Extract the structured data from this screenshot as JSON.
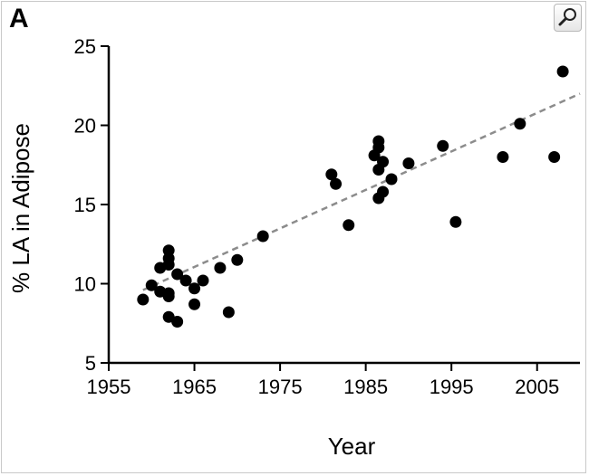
{
  "panel_label": "A",
  "zoom_icon": "magnifier-icon",
  "chart_data": {
    "type": "scatter",
    "title": "",
    "xlabel": "Year",
    "ylabel": "% LA in Adipose",
    "xlim": [
      1955,
      2010
    ],
    "ylim": [
      5,
      25
    ],
    "x_ticks": [
      1955,
      1965,
      1975,
      1985,
      1995,
      2005
    ],
    "y_ticks": [
      5,
      10,
      15,
      20,
      25
    ],
    "grid": false,
    "legend": "none",
    "marker_color": "#000000",
    "trendline": {
      "style": "dashed",
      "color": "#8c8c8c",
      "x": [
        1959,
        2010
      ],
      "y": [
        9.6,
        22.0
      ]
    },
    "points": [
      {
        "x": 1959,
        "y": 9.0
      },
      {
        "x": 1960,
        "y": 9.9
      },
      {
        "x": 1961,
        "y": 11.0
      },
      {
        "x": 1961,
        "y": 9.5
      },
      {
        "x": 1962,
        "y": 12.1
      },
      {
        "x": 1962,
        "y": 11.6
      },
      {
        "x": 1962,
        "y": 11.2
      },
      {
        "x": 1962,
        "y": 9.4
      },
      {
        "x": 1962,
        "y": 9.2
      },
      {
        "x": 1962,
        "y": 7.9
      },
      {
        "x": 1963,
        "y": 10.6
      },
      {
        "x": 1963,
        "y": 7.6
      },
      {
        "x": 1964,
        "y": 10.2
      },
      {
        "x": 1965,
        "y": 9.7
      },
      {
        "x": 1965,
        "y": 8.7
      },
      {
        "x": 1966,
        "y": 10.2
      },
      {
        "x": 1968,
        "y": 11.0
      },
      {
        "x": 1969,
        "y": 8.2
      },
      {
        "x": 1970,
        "y": 11.5
      },
      {
        "x": 1973,
        "y": 13.0
      },
      {
        "x": 1981,
        "y": 16.9
      },
      {
        "x": 1981.5,
        "y": 16.3
      },
      {
        "x": 1983,
        "y": 13.7
      },
      {
        "x": 1986,
        "y": 18.1
      },
      {
        "x": 1986.5,
        "y": 19.0
      },
      {
        "x": 1986.5,
        "y": 18.6
      },
      {
        "x": 1986.5,
        "y": 17.2
      },
      {
        "x": 1986.5,
        "y": 15.4
      },
      {
        "x": 1987,
        "y": 17.7
      },
      {
        "x": 1987,
        "y": 15.8
      },
      {
        "x": 1988,
        "y": 16.6
      },
      {
        "x": 1990,
        "y": 17.6
      },
      {
        "x": 1994,
        "y": 18.7
      },
      {
        "x": 1995.5,
        "y": 13.9
      },
      {
        "x": 2001,
        "y": 18.0
      },
      {
        "x": 2003,
        "y": 20.1
      },
      {
        "x": 2007,
        "y": 18.0
      },
      {
        "x": 2008,
        "y": 23.4
      }
    ]
  }
}
